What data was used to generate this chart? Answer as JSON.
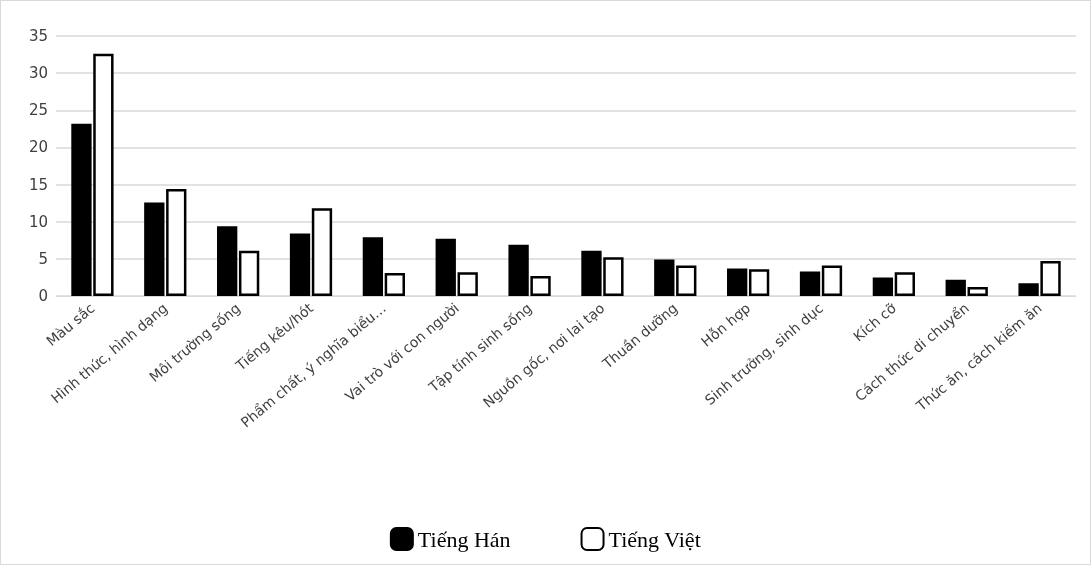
{
  "chart_data": {
    "type": "bar",
    "categories": [
      "Màu sắc",
      "Hình thức, hình dạng",
      "Môi trường sống",
      "Tiếng kêu/hót",
      "Phẩm chất, ý nghĩa biểu…",
      "Vai trò với con người",
      "Tập tính sinh sống",
      "Nguồn gốc, nơi lai tạo",
      "Thuần dưỡng",
      "Hỗn hợp",
      "Sinh trưởng, sinh dục",
      "Kích cỡ",
      "Cách thức di chuyển",
      "Thức ăn, cách kiếm ăn"
    ],
    "series": [
      {
        "name": "Tiếng Hán",
        "color": "#000000",
        "values": [
          23.2,
          12.6,
          9.4,
          8.4,
          7.9,
          7.7,
          6.9,
          6.1,
          4.9,
          3.7,
          3.3,
          2.5,
          2.2,
          1.7
        ]
      },
      {
        "name": "Tiếng Việt",
        "color": "#ffffff",
        "values": [
          32.6,
          14.4,
          6.1,
          11.8,
          3.1,
          3.2,
          2.7,
          5.2,
          4.1,
          3.6,
          4.1,
          3.2,
          1.2,
          4.7
        ]
      }
    ],
    "ylim": [
      0,
      35
    ],
    "yticks": [
      0,
      5,
      10,
      15,
      20,
      25,
      30,
      35
    ],
    "grid": "y",
    "legend": "bottom"
  }
}
